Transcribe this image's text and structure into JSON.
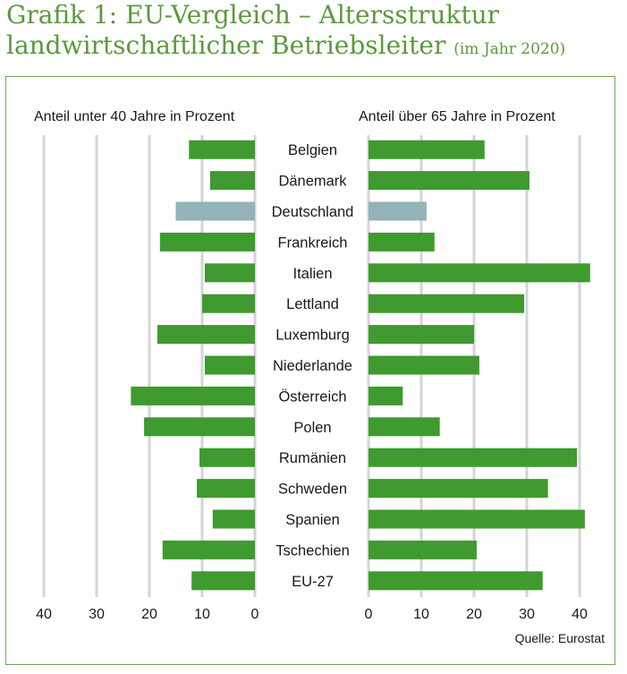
{
  "header": {
    "title_line1": "Grafik 1: EU-Vergleich – Altersstruktur",
    "title_line2": "landwirtschaftlicher Betriebsleiter",
    "title_suffix": "(im Jahr 2020)"
  },
  "colors": {
    "bar": "#3f9a2f",
    "highlight": "#93b3b8",
    "grid": "#d4d4d4",
    "title": "#5a9a3c",
    "frame": "#6aa84f"
  },
  "chart_data": {
    "type": "bar",
    "orientation": "horizontal-butterfly",
    "categories": [
      "Belgien",
      "Dänemark",
      "Deutschland",
      "Frankreich",
      "Italien",
      "Lettland",
      "Luxemburg",
      "Niederlande",
      "Österreich",
      "Polen",
      "Rumänien",
      "Schweden",
      "Spanien",
      "Tschechien",
      "EU-27"
    ],
    "highlight_category": "Deutschland",
    "series": [
      {
        "name": "Anteil unter 40 Jahre in Prozent",
        "values": [
          12.5,
          8.5,
          15,
          18,
          9.5,
          10,
          18.5,
          9.5,
          23.5,
          21,
          10.5,
          11,
          8,
          17.5,
          12
        ]
      },
      {
        "name": "Anteil über 65 Jahre in Prozent",
        "values": [
          22,
          30.5,
          11,
          12.5,
          42,
          29.5,
          20,
          21,
          6.5,
          13.5,
          39.5,
          34,
          41,
          20.5,
          33
        ]
      }
    ],
    "left_axis": {
      "ticks": [
        "40",
        "30",
        "20",
        "10",
        "0"
      ],
      "range": [
        0,
        40
      ]
    },
    "right_axis": {
      "ticks": [
        "0",
        "10",
        "20",
        "30",
        "40"
      ],
      "range": [
        0,
        42
      ]
    },
    "source": "Quelle: Eurostat"
  }
}
